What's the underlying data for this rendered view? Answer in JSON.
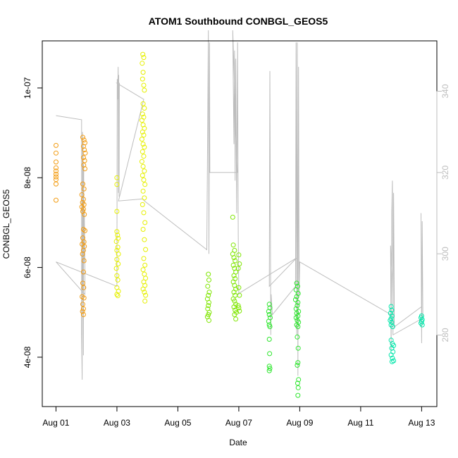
{
  "chart_data": {
    "type": "scatter",
    "title": "ATOM1 Southbound CONBGL_GEOS5",
    "xlabel": "Date",
    "ylabel": "CONBGL_GEOS5",
    "x_unit": "days",
    "x_ticks": [
      "Aug 01",
      "Aug 03",
      "Aug 05",
      "Aug 07",
      "Aug 09",
      "Aug 11",
      "Aug 13"
    ],
    "x_tick_values": [
      0,
      2,
      4,
      6,
      8,
      10,
      12
    ],
    "xlim": [
      -0.45,
      12.5
    ],
    "ylim": [
      2.9e-08,
      1.105e-07
    ],
    "y_ticks": [
      4e-08,
      6e-08,
      8e-08,
      1e-07
    ],
    "y_tick_labels": [
      "4e-08",
      "6e-08",
      "8e-08",
      "1e-07"
    ],
    "y2_ticks": [
      280,
      300,
      320,
      340
    ],
    "y2_tick_labels": [
      "280",
      "300",
      "320",
      "340"
    ],
    "y2lim": [
      262.4,
      352.4
    ],
    "grid": false,
    "colors": {
      "altitude_line": "#bdbdbd",
      "frame": "#000000",
      "right_axis": "#bdbdbd"
    },
    "series": [
      {
        "color": "#f39c12",
        "points": [
          [
            0.0,
            8.72e-08
          ],
          [
            0.0,
            8.55e-08
          ],
          [
            0.0,
            8.35e-08
          ],
          [
            0.0,
            8.22e-08
          ],
          [
            0.0,
            8.15e-08
          ],
          [
            0.0,
            8.08e-08
          ],
          [
            0.0,
            8.02e-08
          ],
          [
            0.0,
            7.96e-08
          ],
          [
            0.0,
            7.86e-08
          ],
          [
            0.0,
            7.5e-08
          ],
          [
            0.88,
            8.9e-08
          ],
          [
            0.92,
            8.84e-08
          ],
          [
            0.95,
            8.78e-08
          ],
          [
            0.9,
            8.7e-08
          ],
          [
            0.93,
            8.62e-08
          ],
          [
            0.96,
            8.55e-08
          ],
          [
            0.9,
            8.45e-08
          ],
          [
            0.94,
            8.38e-08
          ],
          [
            0.91,
            8.28e-08
          ],
          [
            0.95,
            8.2e-08
          ],
          [
            0.88,
            7.86e-08
          ],
          [
            0.92,
            7.75e-08
          ],
          [
            0.85,
            7.62e-08
          ],
          [
            0.9,
            7.52e-08
          ],
          [
            0.87,
            7.45e-08
          ],
          [
            0.92,
            7.4e-08
          ],
          [
            0.85,
            7.35e-08
          ],
          [
            0.9,
            7.3e-08
          ],
          [
            0.88,
            7.25e-08
          ],
          [
            0.93,
            7.18e-08
          ],
          [
            0.9,
            6.85e-08
          ],
          [
            0.95,
            6.82e-08
          ],
          [
            0.88,
            6.66e-08
          ],
          [
            0.92,
            6.57e-08
          ],
          [
            0.86,
            6.52e-08
          ],
          [
            0.93,
            6.47e-08
          ],
          [
            0.9,
            6.38e-08
          ],
          [
            0.87,
            6.3e-08
          ],
          [
            0.92,
            6.15e-08
          ],
          [
            0.9,
            5.9e-08
          ],
          [
            0.88,
            5.65e-08
          ],
          [
            0.91,
            5.55e-08
          ],
          [
            0.86,
            5.35e-08
          ],
          [
            0.92,
            5.32e-08
          ],
          [
            0.88,
            5.18e-08
          ],
          [
            0.9,
            5.08e-08
          ],
          [
            0.87,
            5.02e-08
          ],
          [
            0.9,
            4.95e-08
          ]
        ]
      },
      {
        "color": "#e6f000",
        "points": [
          [
            2.0,
            8e-08
          ],
          [
            2.0,
            7.85e-08
          ],
          [
            2.0,
            7.25e-08
          ],
          [
            2.0,
            6.8e-08
          ],
          [
            2.02,
            6.72e-08
          ],
          [
            2.04,
            6.65e-08
          ],
          [
            1.98,
            6.58e-08
          ],
          [
            2.03,
            6.45e-08
          ],
          [
            2.0,
            6.38e-08
          ],
          [
            2.05,
            6.3e-08
          ],
          [
            2.0,
            6.18e-08
          ],
          [
            2.04,
            6.08e-08
          ],
          [
            1.98,
            5.98e-08
          ],
          [
            2.0,
            5.82e-08
          ],
          [
            2.03,
            5.72e-08
          ],
          [
            2.0,
            5.55e-08
          ],
          [
            2.05,
            5.47e-08
          ],
          [
            2.0,
            5.4e-08
          ],
          [
            2.03,
            5.37e-08
          ],
          [
            2.85,
            1.075e-07
          ],
          [
            2.88,
            1.068e-07
          ],
          [
            2.83,
            1.055e-07
          ],
          [
            2.86,
            1.035e-07
          ],
          [
            2.84,
            1.02e-07
          ],
          [
            2.88,
            1.006e-07
          ],
          [
            2.9,
            9.95e-08
          ],
          [
            2.86,
            9.65e-08
          ],
          [
            2.9,
            9.55e-08
          ],
          [
            2.84,
            9.42e-08
          ],
          [
            2.88,
            9.35e-08
          ],
          [
            2.82,
            9.28e-08
          ],
          [
            2.86,
            9.18e-08
          ],
          [
            2.9,
            9.1e-08
          ],
          [
            2.84,
            9.02e-08
          ],
          [
            2.88,
            8.95e-08
          ],
          [
            2.82,
            8.86e-08
          ],
          [
            2.86,
            8.75e-08
          ],
          [
            2.9,
            8.68e-08
          ],
          [
            2.84,
            8.58e-08
          ],
          [
            2.88,
            8.48e-08
          ],
          [
            2.82,
            8.36e-08
          ],
          [
            2.86,
            8.25e-08
          ],
          [
            2.9,
            8.15e-08
          ],
          [
            2.84,
            8.05e-08
          ],
          [
            2.88,
            7.95e-08
          ],
          [
            2.92,
            7.85e-08
          ],
          [
            2.86,
            7.7e-08
          ],
          [
            2.9,
            7.55e-08
          ],
          [
            2.84,
            7.4e-08
          ],
          [
            2.88,
            7.22e-08
          ],
          [
            2.92,
            7e-08
          ],
          [
            2.86,
            6.85e-08
          ],
          [
            2.9,
            6.62e-08
          ],
          [
            2.94,
            6.4e-08
          ],
          [
            2.88,
            6.2e-08
          ],
          [
            2.92,
            6.05e-08
          ],
          [
            2.86,
            5.95e-08
          ],
          [
            2.9,
            5.85e-08
          ],
          [
            2.94,
            5.76e-08
          ],
          [
            2.88,
            5.68e-08
          ],
          [
            2.92,
            5.6e-08
          ],
          [
            2.86,
            5.52e-08
          ],
          [
            2.9,
            5.45e-08
          ],
          [
            2.94,
            5.38e-08
          ],
          [
            2.92,
            5.25e-08
          ]
        ]
      },
      {
        "color": "#7fe600",
        "points": [
          [
            5.0,
            5.85e-08
          ],
          [
            5.02,
            5.72e-08
          ],
          [
            4.98,
            5.58e-08
          ],
          [
            5.03,
            5.45e-08
          ],
          [
            5.0,
            5.38e-08
          ],
          [
            4.97,
            5.3e-08
          ],
          [
            5.02,
            5.22e-08
          ],
          [
            5.0,
            5.15e-08
          ],
          [
            4.98,
            5.08e-08
          ],
          [
            5.03,
            5e-08
          ],
          [
            5.0,
            4.95e-08
          ],
          [
            4.97,
            4.9e-08
          ],
          [
            5.02,
            4.82e-08
          ],
          [
            5.8,
            7.12e-08
          ],
          [
            5.82,
            6.5e-08
          ],
          [
            5.86,
            6.38e-08
          ],
          [
            5.8,
            6.3e-08
          ],
          [
            5.84,
            6.22e-08
          ],
          [
            5.88,
            6.15e-08
          ],
          [
            5.82,
            6.05e-08
          ],
          [
            5.86,
            5.98e-08
          ],
          [
            5.9,
            5.9e-08
          ],
          [
            5.84,
            5.82e-08
          ],
          [
            5.88,
            5.75e-08
          ],
          [
            5.82,
            5.68e-08
          ],
          [
            5.86,
            5.6e-08
          ],
          [
            5.9,
            5.52e-08
          ],
          [
            5.84,
            5.45e-08
          ],
          [
            5.88,
            5.38e-08
          ],
          [
            5.82,
            5.3e-08
          ],
          [
            5.86,
            5.25e-08
          ],
          [
            5.9,
            5.18e-08
          ],
          [
            5.84,
            5.12e-08
          ],
          [
            5.88,
            5.05e-08
          ],
          [
            5.92,
            5e-08
          ],
          [
            5.86,
            4.95e-08
          ],
          [
            5.9,
            4.85e-08
          ],
          [
            6.0,
            6.28e-08
          ],
          [
            6.02,
            6.08e-08
          ],
          [
            5.98,
            5.98e-08
          ],
          [
            6.0,
            5.55e-08
          ],
          [
            6.02,
            5.38e-08
          ],
          [
            5.98,
            5.15e-08
          ],
          [
            6.0,
            5.1e-08
          ],
          [
            6.02,
            5.03e-08
          ]
        ]
      },
      {
        "color": "#2ee62e",
        "points": [
          [
            7.0,
            5.18e-08
          ],
          [
            7.02,
            5.1e-08
          ],
          [
            6.98,
            5.02e-08
          ],
          [
            7.0,
            4.95e-08
          ],
          [
            7.03,
            4.88e-08
          ],
          [
            6.98,
            4.8e-08
          ],
          [
            7.0,
            4.72e-08
          ],
          [
            7.02,
            4.68e-08
          ],
          [
            7.0,
            4.4e-08
          ],
          [
            7.01,
            4.08e-08
          ],
          [
            7.0,
            3.8e-08
          ],
          [
            7.02,
            3.75e-08
          ],
          [
            7.0,
            3.7e-08
          ],
          [
            7.9,
            5.65e-08
          ],
          [
            7.93,
            5.58e-08
          ],
          [
            7.88,
            5.5e-08
          ],
          [
            7.95,
            5.42e-08
          ],
          [
            7.9,
            5.35e-08
          ],
          [
            7.86,
            5.28e-08
          ],
          [
            7.94,
            5.22e-08
          ],
          [
            7.92,
            5.15e-08
          ],
          [
            7.88,
            5.08e-08
          ],
          [
            7.96,
            5.02e-08
          ],
          [
            7.9,
            4.98e-08
          ],
          [
            7.94,
            4.92e-08
          ],
          [
            7.88,
            4.88e-08
          ],
          [
            7.92,
            4.82e-08
          ],
          [
            7.96,
            4.78e-08
          ],
          [
            7.9,
            4.72e-08
          ],
          [
            7.94,
            4.68e-08
          ],
          [
            7.92,
            4.45e-08
          ],
          [
            7.95,
            4.2e-08
          ],
          [
            7.94,
            3.88e-08
          ],
          [
            7.92,
            3.82e-08
          ],
          [
            7.96,
            3.5e-08
          ],
          [
            7.93,
            3.42e-08
          ],
          [
            7.95,
            3.32e-08
          ],
          [
            7.94,
            3.15e-08
          ]
        ]
      },
      {
        "color": "#00e6aa",
        "points": [
          [
            11.0,
            5.13e-08
          ],
          [
            11.02,
            5.05e-08
          ],
          [
            10.98,
            4.98e-08
          ],
          [
            11.03,
            4.92e-08
          ],
          [
            11.0,
            4.86e-08
          ],
          [
            10.97,
            4.82e-08
          ],
          [
            11.02,
            4.78e-08
          ],
          [
            11.0,
            4.72e-08
          ],
          [
            11.05,
            4.68e-08
          ],
          [
            11.0,
            4.38e-08
          ],
          [
            11.04,
            4.3e-08
          ],
          [
            11.08,
            4.26e-08
          ],
          [
            11.02,
            4.2e-08
          ],
          [
            11.06,
            4.12e-08
          ],
          [
            11.0,
            4.05e-08
          ],
          [
            11.04,
            3.98e-08
          ],
          [
            11.08,
            3.92e-08
          ],
          [
            11.03,
            3.9e-08
          ],
          [
            12.0,
            4.92e-08
          ],
          [
            11.98,
            4.88e-08
          ],
          [
            12.02,
            4.84e-08
          ],
          [
            12.0,
            4.8e-08
          ],
          [
            11.98,
            4.76e-08
          ],
          [
            12.02,
            4.72e-08
          ]
        ]
      }
    ],
    "altitude_line": [
      [
        0.0,
        334.0
      ],
      [
        0.84,
        333.0
      ],
      [
        0.84,
        280.0
      ],
      [
        0.86,
        269.0
      ],
      [
        0.87,
        330.0
      ],
      [
        0.88,
        291.0
      ],
      [
        0.89,
        327.0
      ],
      [
        0.9,
        275.0
      ],
      [
        0.91,
        322.0
      ],
      [
        0.92,
        298.0
      ],
      [
        0.93,
        310.0
      ],
      [
        0.94,
        303.0
      ],
      [
        0.95,
        296.0
      ],
      [
        0.95,
        290.0
      ],
      [
        0.0,
        298.0
      ],
      [
        2.0,
        292.0
      ],
      [
        2.01,
        343.0
      ],
      [
        2.02,
        338.0
      ],
      [
        2.04,
        346.0
      ],
      [
        2.05,
        315.0
      ],
      [
        2.06,
        344.0
      ],
      [
        2.07,
        314.0
      ],
      [
        2.08,
        342.0
      ],
      [
        2.0,
        342.0
      ],
      [
        2.88,
        338.0
      ],
      [
        2.05,
        313.0
      ],
      [
        2.85,
        313.5
      ],
      [
        2.9,
        313.0
      ],
      [
        4.95,
        301.0
      ],
      [
        5.0,
        355.0
      ],
      [
        5.02,
        300.0
      ],
      [
        5.04,
        352.0
      ],
      [
        5.05,
        320.0
      ],
      [
        5.1,
        320.0
      ],
      [
        5.95,
        320.0
      ],
      [
        5.8,
        355.0
      ],
      [
        5.84,
        327.0
      ],
      [
        5.86,
        350.0
      ],
      [
        5.88,
        318.0
      ],
      [
        5.9,
        348.0
      ],
      [
        5.93,
        310.0
      ],
      [
        5.96,
        352.0
      ],
      [
        5.98,
        305.0
      ],
      [
        6.0,
        290.0
      ],
      [
        5.95,
        290.0
      ],
      [
        7.9,
        299.0
      ],
      [
        7.0,
        292.0
      ],
      [
        7.02,
        345.0
      ],
      [
        7.04,
        300.0
      ],
      [
        7.05,
        280.0
      ],
      [
        7.06,
        290.0
      ],
      [
        7.1,
        285.0
      ],
      [
        7.86,
        292.0
      ],
      [
        7.88,
        352.0
      ],
      [
        7.9,
        280.0
      ],
      [
        7.92,
        352.0
      ],
      [
        7.94,
        270.0
      ],
      [
        7.96,
        346.0
      ],
      [
        7.98,
        290.0
      ],
      [
        8.0,
        298.0
      ],
      [
        11.0,
        285.0
      ],
      [
        11.02,
        295.0
      ],
      [
        10.98,
        302.0
      ],
      [
        11.0,
        276.0
      ],
      [
        11.02,
        310.0
      ],
      [
        11.04,
        318.0
      ],
      [
        11.06,
        280.0
      ],
      [
        11.08,
        315.0
      ],
      [
        11.1,
        290.0
      ],
      [
        11.1,
        282.0
      ],
      [
        12.0,
        287.0
      ],
      [
        11.98,
        310.0
      ],
      [
        12.0,
        278.0
      ],
      [
        12.02,
        308.0
      ],
      [
        12.04,
        285.0
      ],
      [
        12.0,
        284.0
      ],
      [
        11.05,
        280.0
      ]
    ]
  }
}
